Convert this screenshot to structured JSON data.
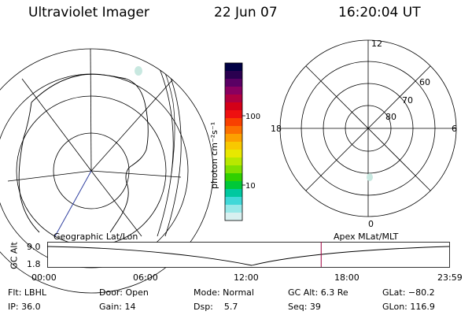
{
  "header": {
    "title": "Ultraviolet Imager",
    "date": "22 Jun 07",
    "time": "16:20:04 UT"
  },
  "geo_map": {
    "label": "Geographic Lat/Lon"
  },
  "colorbar": {
    "unit_label": "photon cm⁻²s⁻¹",
    "tick_100": "100",
    "tick_10": "10",
    "colors": [
      "#000044",
      "#2a0050",
      "#5a0064",
      "#8a0060",
      "#b00040",
      "#d40018",
      "#ee1010",
      "#f84000",
      "#fc7000",
      "#fca000",
      "#f8c800",
      "#e8e800",
      "#b8e800",
      "#80e000",
      "#30d000",
      "#00c838",
      "#00c8a0",
      "#40d8d8",
      "#98e8e8",
      "#d8f0f0"
    ]
  },
  "polar_plot": {
    "label": "Apex MLat/MLT",
    "mlt_12": "12",
    "mlt_18": "18",
    "mlt_6": "6",
    "mlt_0": "0",
    "lat_60": "60",
    "lat_70": "70",
    "lat_80": "80"
  },
  "altitude_panel": {
    "ylabel": "GC Alt",
    "ymax": "9.0",
    "ymin": "1.8",
    "x_ticks": [
      "00:00",
      "06:00",
      "12:00",
      "18:00",
      "23:59"
    ],
    "marker_time": "16:20",
    "marker_color": "#a00040"
  },
  "info": {
    "flt": "Flt: LBHL",
    "ip": "IP: 36.0",
    "door": "Door: Open",
    "gain": "Gain: 14",
    "mode": "Mode: Normal",
    "dsp": "Dsp:    5.7",
    "gcalt": "GC Alt: 6.3 Re",
    "seq": "Seq: 39",
    "glat": "GLat: −80.2",
    "glon": "GLon: 116.9"
  }
}
